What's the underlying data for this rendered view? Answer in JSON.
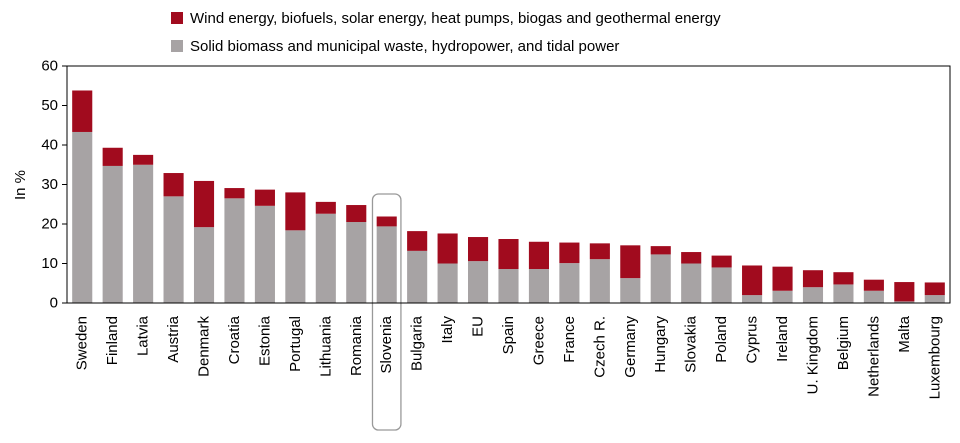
{
  "chart_data": {
    "type": "bar",
    "stacked": true,
    "ylabel": "In %",
    "ylim": [
      0,
      60
    ],
    "yticks": [
      0,
      10,
      20,
      30,
      40,
      50,
      60
    ],
    "grid": false,
    "legend_position": "top",
    "highlighted_category": "Slovenia",
    "categories": [
      "Sweden",
      "Finland",
      "Latvia",
      "Austria",
      "Denmark",
      "Croatia",
      "Estonia",
      "Portugal",
      "Lithuania",
      "Romania",
      "Slovenia",
      "Bulgaria",
      "Italy",
      "EU",
      "Spain",
      "Greece",
      "France",
      "Czech R.",
      "Germany",
      "Hungary",
      "Slovakia",
      "Poland",
      "Cyprus",
      "Ireland",
      "U. Kingdom",
      "Belgium",
      "Netherlands",
      "Malta",
      "Luxembourg"
    ],
    "series": [
      {
        "name": "Solid biomass and municipal waste, hydropower, and tidal power",
        "color": "#a7a3a4",
        "values": [
          43.3,
          34.7,
          35.0,
          27.0,
          19.2,
          26.5,
          24.6,
          18.4,
          22.6,
          20.5,
          19.4,
          13.2,
          10.0,
          10.6,
          8.6,
          8.6,
          10.1,
          11.1,
          6.3,
          12.3,
          10.0,
          9.0,
          2.0,
          3.1,
          4.0,
          4.7,
          3.1,
          0.4,
          2.0
        ]
      },
      {
        "name": "Wind energy, biofuels, solar energy, heat pumps, biogas and geothermal energy",
        "color": "#a10b1e",
        "values": [
          10.5,
          4.6,
          2.5,
          5.9,
          11.7,
          2.6,
          4.1,
          9.6,
          3.0,
          4.3,
          2.5,
          5.0,
          7.6,
          6.1,
          7.6,
          6.9,
          5.2,
          4.0,
          8.3,
          2.1,
          2.9,
          3.0,
          7.5,
          6.1,
          4.3,
          3.1,
          2.8,
          4.9,
          3.2
        ]
      }
    ]
  }
}
